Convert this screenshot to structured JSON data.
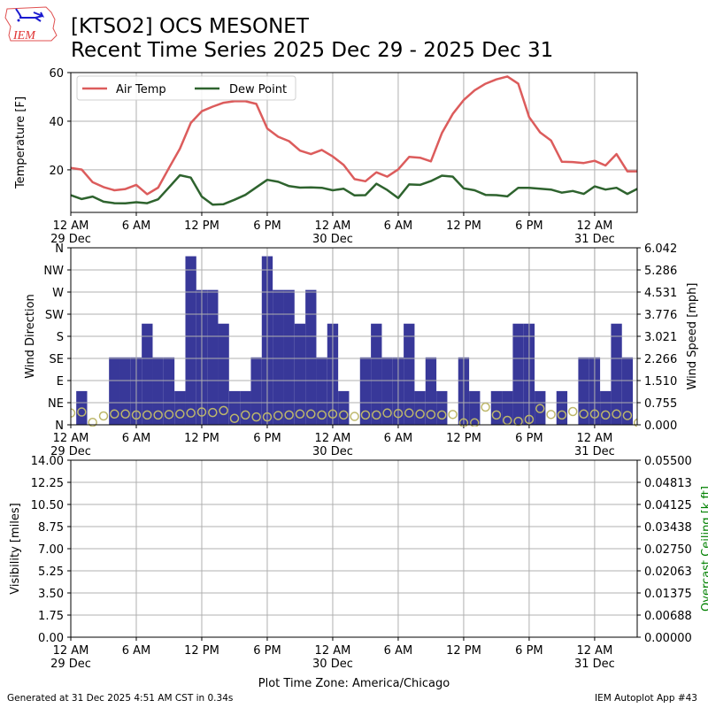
{
  "header": {
    "title_line1": "[KTSO2] OCS MESONET",
    "title_line2": "Recent Time Series 2025 Dec 29 - 2025 Dec 31",
    "logo_text": "IEM"
  },
  "footer": {
    "generated": "Generated at 31 Dec 2025 4:51 AM CST in 0.34s",
    "app": "IEM Autoplot App #43",
    "timezone": "Plot Time Zone: America/Chicago"
  },
  "colors": {
    "air_temp": "#dc5c5c",
    "dew_point": "#2e632e",
    "wind_speed": "#383899",
    "wind_dir": "#bdb76b",
    "ceiling_label": "#008000",
    "grid": "#b0b0b0"
  },
  "x_ticks": [
    {
      "hour": 0,
      "line1": "12 AM",
      "line2": "29 Dec"
    },
    {
      "hour": 6,
      "line1": "6 AM",
      "line2": ""
    },
    {
      "hour": 12,
      "line1": "12 PM",
      "line2": ""
    },
    {
      "hour": 18,
      "line1": "6 PM",
      "line2": ""
    },
    {
      "hour": 24,
      "line1": "12 AM",
      "line2": "30 Dec"
    },
    {
      "hour": 30,
      "line1": "6 AM",
      "line2": ""
    },
    {
      "hour": 36,
      "line1": "12 PM",
      "line2": ""
    },
    {
      "hour": 42,
      "line1": "6 PM",
      "line2": ""
    },
    {
      "hour": 48,
      "line1": "12 AM",
      "line2": "31 Dec"
    }
  ],
  "chart_data": [
    {
      "type": "line",
      "name": "temperature",
      "ylabel": "Temperature [F]",
      "xlim_hours": [
        0,
        51.9
      ],
      "ylim": [
        2.5,
        60
      ],
      "yticks": [
        "20",
        "40",
        "60"
      ],
      "ytick_values": [
        20,
        40,
        60
      ],
      "grid": true,
      "legend": "top-left",
      "x_hours": [
        0,
        1,
        2,
        3,
        4,
        5,
        6,
        7,
        8,
        9,
        10,
        11,
        12,
        13,
        14,
        15,
        16,
        17,
        18,
        19,
        20,
        21,
        22,
        23,
        24,
        25,
        26,
        27,
        28,
        29,
        30,
        31,
        32,
        33,
        34,
        35,
        36,
        37,
        38,
        39,
        40,
        41,
        42,
        43,
        44,
        45,
        46,
        47,
        48,
        49,
        50,
        51,
        52
      ],
      "series": [
        {
          "name": "Air Temp",
          "values": [
            20.8,
            20.1,
            14.9,
            12.9,
            11.6,
            12.1,
            13.8,
            10.0,
            12.7,
            20.8,
            28.7,
            39.3,
            44.1,
            46.0,
            47.6,
            48.2,
            48.2,
            47.1,
            37.0,
            33.6,
            31.8,
            27.9,
            26.5,
            28.2,
            25.5,
            22.0,
            16.2,
            15.3,
            19.0,
            17.2,
            20.2,
            25.3,
            25.0,
            23.5,
            35.1,
            43.0,
            48.7,
            52.7,
            55.4,
            57.2,
            58.4,
            55.4,
            41.7,
            35.4,
            32.1,
            23.3,
            23.2,
            22.8,
            23.7,
            21.8,
            26.5,
            19.4,
            19.4
          ]
        },
        {
          "name": "Dew Point",
          "values": [
            9.6,
            8.0,
            9.0,
            6.9,
            6.3,
            6.2,
            6.7,
            6.3,
            7.9,
            12.8,
            17.8,
            16.8,
            9.0,
            5.7,
            5.9,
            7.7,
            9.7,
            12.8,
            15.9,
            15.1,
            13.3,
            12.7,
            12.8,
            12.6,
            11.6,
            12.2,
            9.5,
            9.6,
            14.3,
            11.7,
            8.4,
            14.0,
            13.8,
            15.4,
            17.6,
            17.2,
            12.4,
            11.6,
            9.7,
            9.6,
            9.1,
            12.6,
            12.6,
            12.2,
            11.9,
            10.6,
            11.3,
            10.1,
            13.2,
            11.9,
            12.6,
            10.1,
            12.4
          ]
        }
      ]
    },
    {
      "type": "bar",
      "name": "wind",
      "ylabel": "Wind Direction",
      "y2label": "Wind Speed [mph]",
      "xlim_hours": [
        0,
        51.9
      ],
      "dir_ticks": [
        "N",
        "NE",
        "E",
        "SE",
        "S",
        "SW",
        "W",
        "NW",
        "N"
      ],
      "dir_ylim": [
        0,
        360
      ],
      "speed_ticks": [
        "0.000",
        "0.755",
        "1.510",
        "2.266",
        "3.021",
        "3.776",
        "4.531",
        "5.286",
        "6.042"
      ],
      "speed_ylim": [
        0,
        6.042
      ],
      "grid": true,
      "x_hours": [
        0,
        1,
        2,
        3,
        4,
        5,
        6,
        7,
        8,
        9,
        10,
        11,
        12,
        13,
        14,
        15,
        16,
        17,
        18,
        19,
        20,
        21,
        22,
        23,
        24,
        25,
        26,
        27,
        28,
        29,
        30,
        31,
        32,
        33,
        34,
        35,
        36,
        37,
        38,
        39,
        40,
        41,
        42,
        43,
        44,
        45,
        46,
        47,
        48,
        49,
        50,
        51,
        52
      ],
      "series": [
        {
          "name": "Wind Speed",
          "kind": "bar",
          "values": [
            0,
            1.151,
            0,
            0,
            2.302,
            2.302,
            2.302,
            3.452,
            2.302,
            2.302,
            1.151,
            5.754,
            4.603,
            4.603,
            3.452,
            1.151,
            1.151,
            2.302,
            5.754,
            4.603,
            4.603,
            3.452,
            4.603,
            2.302,
            3.452,
            1.151,
            0,
            2.302,
            3.452,
            2.302,
            2.302,
            3.452,
            1.151,
            2.302,
            1.151,
            0,
            2.302,
            1.151,
            0,
            1.151,
            1.151,
            3.452,
            3.452,
            1.151,
            0,
            1.151,
            0,
            2.302,
            2.302,
            1.151,
            3.452,
            2.302,
            0
          ]
        },
        {
          "name": "Wind Direction",
          "kind": "scatter",
          "values": [
            24,
            26,
            5,
            18,
            22,
            22,
            20,
            20,
            20,
            21,
            22,
            24,
            26,
            25,
            29,
            13,
            20,
            16,
            16,
            19,
            20,
            22,
            22,
            20,
            22,
            20,
            17,
            20,
            20,
            24,
            23,
            24,
            22,
            21,
            20,
            21,
            4,
            4,
            36,
            20,
            9,
            7,
            11,
            33,
            21,
            20,
            27,
            22,
            22,
            20,
            22,
            19,
            4
          ]
        }
      ]
    },
    {
      "type": "line",
      "name": "visibility",
      "ylabel": "Visibility [miles]",
      "y2label": "Overcast Ceiling [k ft]",
      "xlim_hours": [
        0,
        51.9
      ],
      "ylim": [
        0,
        14
      ],
      "yticks": [
        "0.00",
        "1.75",
        "3.50",
        "5.25",
        "7.00",
        "8.75",
        "10.50",
        "12.25",
        "14.00"
      ],
      "y2lim": [
        0,
        0.055
      ],
      "y2ticks": [
        "0.00000",
        "0.00688",
        "0.01375",
        "0.02063",
        "0.02750",
        "0.03438",
        "0.04125",
        "0.04813",
        "0.05500"
      ],
      "grid": true,
      "series": []
    }
  ]
}
